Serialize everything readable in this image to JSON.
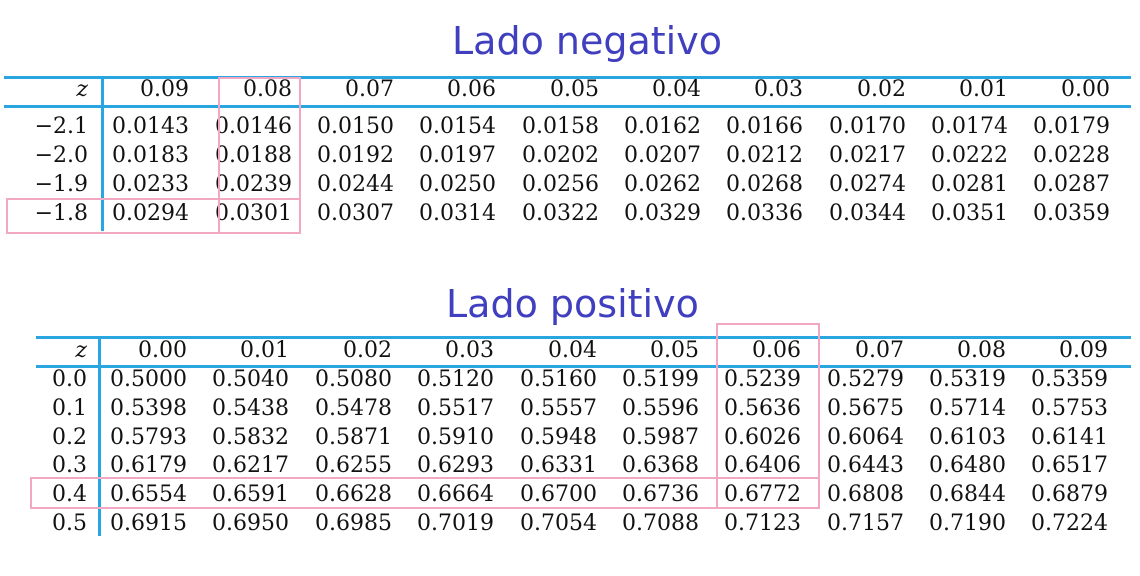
{
  "negative": {
    "title": "Lado negativo",
    "z_label": "z",
    "columns": [
      "0.09",
      "0.08",
      "0.07",
      "0.06",
      "0.05",
      "0.04",
      "0.03",
      "0.02",
      "0.01",
      "0.00"
    ],
    "rows": [
      {
        "z": "−2.1",
        "values": [
          "0.0143",
          "0.0146",
          "0.0150",
          "0.0154",
          "0.0158",
          "0.0162",
          "0.0166",
          "0.0170",
          "0.0174",
          "0.0179"
        ]
      },
      {
        "z": "−2.0",
        "values": [
          "0.0183",
          "0.0188",
          "0.0192",
          "0.0197",
          "0.0202",
          "0.0207",
          "0.0212",
          "0.0217",
          "0.0222",
          "0.0228"
        ]
      },
      {
        "z": "−1.9",
        "values": [
          "0.0233",
          "0.0239",
          "0.0244",
          "0.0250",
          "0.0256",
          "0.0262",
          "0.0268",
          "0.0274",
          "0.0281",
          "0.0287"
        ]
      },
      {
        "z": "−1.8",
        "values": [
          "0.0294",
          "0.0301",
          "0.0307",
          "0.0314",
          "0.0322",
          "0.0329",
          "0.0336",
          "0.0344",
          "0.0351",
          "0.0359"
        ]
      }
    ],
    "highlighted_row": "−1.8",
    "highlighted_column": "0.08"
  },
  "positive": {
    "title": "Lado positivo",
    "z_label": "z",
    "columns": [
      "0.00",
      "0.01",
      "0.02",
      "0.03",
      "0.04",
      "0.05",
      "0.06",
      "0.07",
      "0.08",
      "0.09"
    ],
    "rows": [
      {
        "z": "0.0",
        "values": [
          "0.5000",
          "0.5040",
          "0.5080",
          "0.5120",
          "0.5160",
          "0.5199",
          "0.5239",
          "0.5279",
          "0.5319",
          "0.5359"
        ]
      },
      {
        "z": "0.1",
        "values": [
          "0.5398",
          "0.5438",
          "0.5478",
          "0.5517",
          "0.5557",
          "0.5596",
          "0.5636",
          "0.5675",
          "0.5714",
          "0.5753"
        ]
      },
      {
        "z": "0.2",
        "values": [
          "0.5793",
          "0.5832",
          "0.5871",
          "0.5910",
          "0.5948",
          "0.5987",
          "0.6026",
          "0.6064",
          "0.6103",
          "0.6141"
        ]
      },
      {
        "z": "0.3",
        "values": [
          "0.6179",
          "0.6217",
          "0.6255",
          "0.6293",
          "0.6331",
          "0.6368",
          "0.6406",
          "0.6443",
          "0.6480",
          "0.6517"
        ]
      },
      {
        "z": "0.4",
        "values": [
          "0.6554",
          "0.6591",
          "0.6628",
          "0.6664",
          "0.6700",
          "0.6736",
          "0.6772",
          "0.6808",
          "0.6844",
          "0.6879"
        ]
      },
      {
        "z": "0.5",
        "values": [
          "0.6915",
          "0.6950",
          "0.6985",
          "0.7019",
          "0.7054",
          "0.7088",
          "0.7123",
          "0.7157",
          "0.7190",
          "0.7224"
        ]
      }
    ],
    "highlighted_row": "0.4",
    "highlighted_column": "0.06"
  },
  "colors": {
    "title": "#3f3fbf",
    "rule": "#29a6e0",
    "highlight": "#f2a7c3"
  }
}
